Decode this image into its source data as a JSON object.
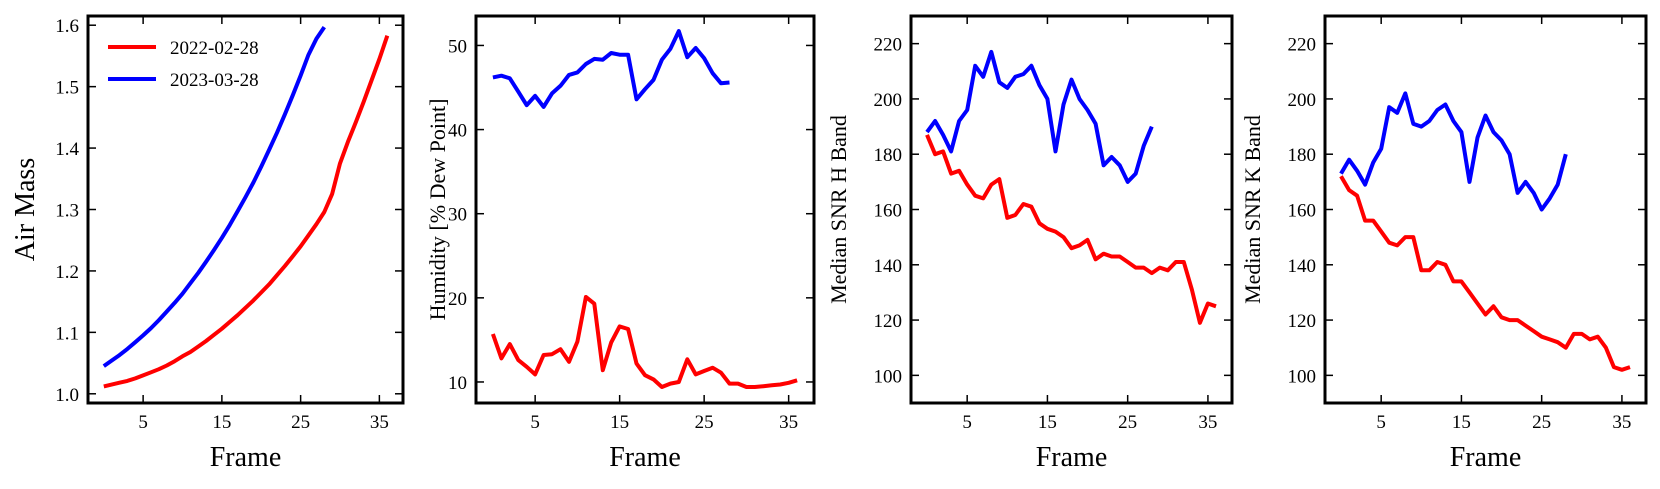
{
  "colors": {
    "red": "#ff0000",
    "blue": "#0000ff"
  },
  "legend": {
    "placement": "top-left",
    "entries": [
      {
        "label": "2022-02-28",
        "color": "#ff0000"
      },
      {
        "label": "2023-03-28",
        "color": "#0000ff"
      }
    ]
  },
  "chart_data": [
    {
      "type": "line",
      "title": "",
      "xlabel": "Frame",
      "ylabel": "Air Mass",
      "xlim": [
        -2,
        38
      ],
      "ylim": [
        0.985,
        1.615
      ],
      "xticks": [
        5,
        15,
        25,
        35
      ],
      "yticks": [
        1.0,
        1.1,
        1.2,
        1.3,
        1.4,
        1.5,
        1.6
      ],
      "ytick_labels": [
        "1.0",
        "1.1",
        "1.2",
        "1.3",
        "1.4",
        "1.5",
        "1.6"
      ],
      "legend": true,
      "series": [
        {
          "name": "2022-02-28",
          "color": "#ff0000",
          "x": [
            0,
            1,
            2,
            3,
            4,
            5,
            6,
            7,
            8,
            9,
            10,
            11,
            12,
            13,
            14,
            15,
            16,
            17,
            18,
            19,
            20,
            21,
            22,
            23,
            24,
            25,
            26,
            27,
            28,
            29,
            30,
            31,
            32,
            33,
            34,
            35,
            36
          ],
          "y": [
            1.012,
            1.015,
            1.018,
            1.021,
            1.025,
            1.03,
            1.035,
            1.04,
            1.046,
            1.053,
            1.061,
            1.068,
            1.077,
            1.086,
            1.096,
            1.106,
            1.117,
            1.128,
            1.14,
            1.152,
            1.165,
            1.178,
            1.193,
            1.208,
            1.224,
            1.24,
            1.258,
            1.276,
            1.296,
            1.325,
            1.375,
            1.41,
            1.442,
            1.475,
            1.51,
            1.545,
            1.583
          ]
        },
        {
          "name": "2023-03-28",
          "color": "#0000ff",
          "x": [
            0,
            1,
            2,
            3,
            4,
            5,
            6,
            7,
            8,
            9,
            10,
            11,
            12,
            13,
            14,
            15,
            16,
            17,
            18,
            19,
            20,
            21,
            22,
            23,
            24,
            25,
            26,
            27,
            28
          ],
          "y": [
            1.045,
            1.054,
            1.063,
            1.073,
            1.084,
            1.095,
            1.107,
            1.12,
            1.134,
            1.148,
            1.163,
            1.18,
            1.197,
            1.215,
            1.234,
            1.254,
            1.275,
            1.297,
            1.32,
            1.344,
            1.37,
            1.397,
            1.425,
            1.455,
            1.486,
            1.518,
            1.552,
            1.578,
            1.597
          ]
        }
      ]
    },
    {
      "type": "line",
      "title": "",
      "xlabel": "Frame",
      "ylabel": "Humidity [% Dew Point]",
      "xlim": [
        -2,
        38
      ],
      "ylim": [
        7.5,
        53.5
      ],
      "xticks": [
        5,
        15,
        25,
        35
      ],
      "yticks": [
        10,
        20,
        30,
        40,
        50
      ],
      "ytick_labels": [
        "10",
        "20",
        "30",
        "40",
        "50"
      ],
      "legend": false,
      "series": [
        {
          "name": "2022-02-28",
          "color": "#ff0000",
          "x": [
            0,
            1,
            2,
            3,
            4,
            5,
            6,
            7,
            8,
            9,
            10,
            11,
            12,
            13,
            14,
            15,
            16,
            17,
            18,
            19,
            20,
            21,
            22,
            23,
            24,
            25,
            26,
            27,
            28,
            29,
            30,
            31,
            32,
            33,
            34,
            35,
            36
          ],
          "y": [
            15.7,
            12.8,
            14.5,
            12.6,
            11.8,
            10.9,
            13.2,
            13.3,
            13.9,
            12.4,
            14.8,
            20.1,
            19.3,
            11.4,
            14.7,
            16.6,
            16.3,
            12.2,
            10.8,
            10.3,
            9.4,
            9.8,
            10.0,
            12.7,
            10.9,
            11.3,
            11.7,
            11.1,
            9.8,
            9.8,
            9.4,
            9.4,
            9.5,
            9.6,
            9.7,
            9.9,
            10.2
          ]
        },
        {
          "name": "2023-03-28",
          "color": "#0000ff",
          "x": [
            0,
            1,
            2,
            3,
            4,
            5,
            6,
            7,
            8,
            9,
            10,
            11,
            12,
            13,
            14,
            15,
            16,
            17,
            18,
            19,
            20,
            21,
            22,
            23,
            24,
            25,
            26,
            27,
            28
          ],
          "y": [
            46.2,
            46.4,
            46.1,
            44.5,
            42.9,
            44.0,
            42.7,
            44.3,
            45.2,
            46.5,
            46.8,
            47.8,
            48.4,
            48.3,
            49.1,
            48.9,
            48.9,
            43.6,
            44.8,
            45.9,
            48.3,
            49.6,
            51.7,
            48.6,
            49.7,
            48.5,
            46.7,
            45.5,
            45.6
          ]
        }
      ]
    },
    {
      "type": "line",
      "title": "",
      "xlabel": "Frame",
      "ylabel": "Median SNR H Band",
      "xlim": [
        -2,
        38
      ],
      "ylim": [
        90,
        230
      ],
      "xticks": [
        5,
        15,
        25,
        35
      ],
      "yticks": [
        100,
        120,
        140,
        160,
        180,
        200,
        220
      ],
      "ytick_labels": [
        "100",
        "120",
        "140",
        "160",
        "180",
        "200",
        "220"
      ],
      "legend": false,
      "series": [
        {
          "name": "2022-02-28",
          "color": "#ff0000",
          "x": [
            0,
            1,
            2,
            3,
            4,
            5,
            6,
            7,
            8,
            9,
            10,
            11,
            12,
            13,
            14,
            15,
            16,
            17,
            18,
            19,
            20,
            21,
            22,
            23,
            24,
            25,
            26,
            27,
            28,
            29,
            30,
            31,
            32,
            33,
            34,
            35,
            36
          ],
          "y": [
            187,
            180,
            181,
            173,
            174,
            169,
            165,
            164,
            169,
            171,
            157,
            158,
            162,
            161,
            155,
            153,
            152,
            150,
            146,
            147,
            149,
            142,
            144,
            143,
            143,
            141,
            139,
            139,
            137,
            139,
            138,
            141,
            141,
            131,
            119,
            126,
            125
          ]
        },
        {
          "name": "2023-03-28",
          "color": "#0000ff",
          "x": [
            0,
            1,
            2,
            3,
            4,
            5,
            6,
            7,
            8,
            9,
            10,
            11,
            12,
            13,
            14,
            15,
            16,
            17,
            18,
            19,
            20,
            21,
            22,
            23,
            24,
            25,
            26,
            27,
            28
          ],
          "y": [
            188,
            192,
            187,
            181,
            192,
            196,
            212,
            208,
            217,
            206,
            204,
            208,
            209,
            212,
            205,
            200,
            181,
            198,
            207,
            200,
            196,
            191,
            176,
            179,
            176,
            170,
            173,
            183,
            190
          ]
        }
      ]
    },
    {
      "type": "line",
      "title": "",
      "xlabel": "Frame",
      "ylabel": "Median SNR K Band",
      "xlim": [
        -2,
        38
      ],
      "ylim": [
        90,
        230
      ],
      "xticks": [
        5,
        15,
        25,
        35
      ],
      "yticks": [
        100,
        120,
        140,
        160,
        180,
        200,
        220
      ],
      "ytick_labels": [
        "100",
        "120",
        "140",
        "160",
        "180",
        "200",
        "220"
      ],
      "legend": false,
      "series": [
        {
          "name": "2022-02-28",
          "color": "#ff0000",
          "x": [
            0,
            1,
            2,
            3,
            4,
            5,
            6,
            7,
            8,
            9,
            10,
            11,
            12,
            13,
            14,
            15,
            16,
            17,
            18,
            19,
            20,
            21,
            22,
            23,
            24,
            25,
            26,
            27,
            28,
            29,
            30,
            31,
            32,
            33,
            34,
            35,
            36
          ],
          "y": [
            172,
            167,
            165,
            156,
            156,
            152,
            148,
            147,
            150,
            150,
            138,
            138,
            141,
            140,
            134,
            134,
            130,
            126,
            122,
            125,
            121,
            120,
            120,
            118,
            116,
            114,
            113,
            112,
            110,
            115,
            115,
            113,
            114,
            110,
            103,
            102,
            103
          ]
        },
        {
          "name": "2023-03-28",
          "color": "#0000ff",
          "x": [
            0,
            1,
            2,
            3,
            4,
            5,
            6,
            7,
            8,
            9,
            10,
            11,
            12,
            13,
            14,
            15,
            16,
            17,
            18,
            19,
            20,
            21,
            22,
            23,
            24,
            25,
            26,
            27,
            28
          ],
          "y": [
            173,
            178,
            174,
            169,
            177,
            182,
            197,
            195,
            202,
            191,
            190,
            192,
            196,
            198,
            192,
            188,
            170,
            186,
            194,
            188,
            185,
            180,
            166,
            170,
            166,
            160,
            164,
            169,
            180
          ]
        }
      ]
    }
  ]
}
